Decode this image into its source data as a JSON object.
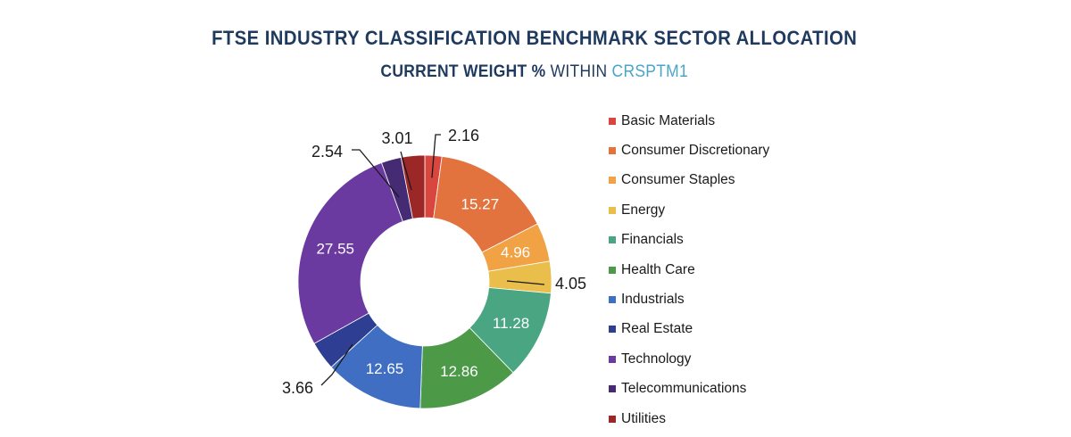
{
  "title": "FTSE INDUSTRY CLASSIFICATION BENCHMARK SECTOR ALLOCATION",
  "subtitle": {
    "bold": "CURRENT WEIGHT %",
    "normal": "WITHIN",
    "highlight": "CRSPTM1"
  },
  "chart_data": {
    "type": "pie",
    "donut": true,
    "title": "FTSE INDUSTRY CLASSIFICATION BENCHMARK SECTOR ALLOCATION",
    "subtitle": "CURRENT WEIGHT % WITHIN CRSPTM1",
    "legend_position": "right",
    "categories": [
      "Basic Materials",
      "Consumer Discretionary",
      "Consumer Staples",
      "Energy",
      "Financials",
      "Health Care",
      "Industrials",
      "Real Estate",
      "Technology",
      "Telecommunications",
      "Utilities"
    ],
    "values": [
      2.16,
      15.27,
      4.96,
      4.05,
      11.28,
      12.86,
      12.65,
      3.66,
      27.55,
      2.54,
      3.01
    ],
    "labels": [
      "2.16",
      "15.27",
      "4.96",
      "4.05",
      "11.28",
      "12.86",
      "12.65",
      "3.66",
      "27.55",
      "2.54",
      "3.01"
    ],
    "colors": [
      "#d9463e",
      "#e2733f",
      "#f0a245",
      "#e9be4a",
      "#4aa583",
      "#4c9a48",
      "#3f6ec3",
      "#2e3e92",
      "#6a3aa1",
      "#452a74",
      "#9b2727"
    ]
  }
}
